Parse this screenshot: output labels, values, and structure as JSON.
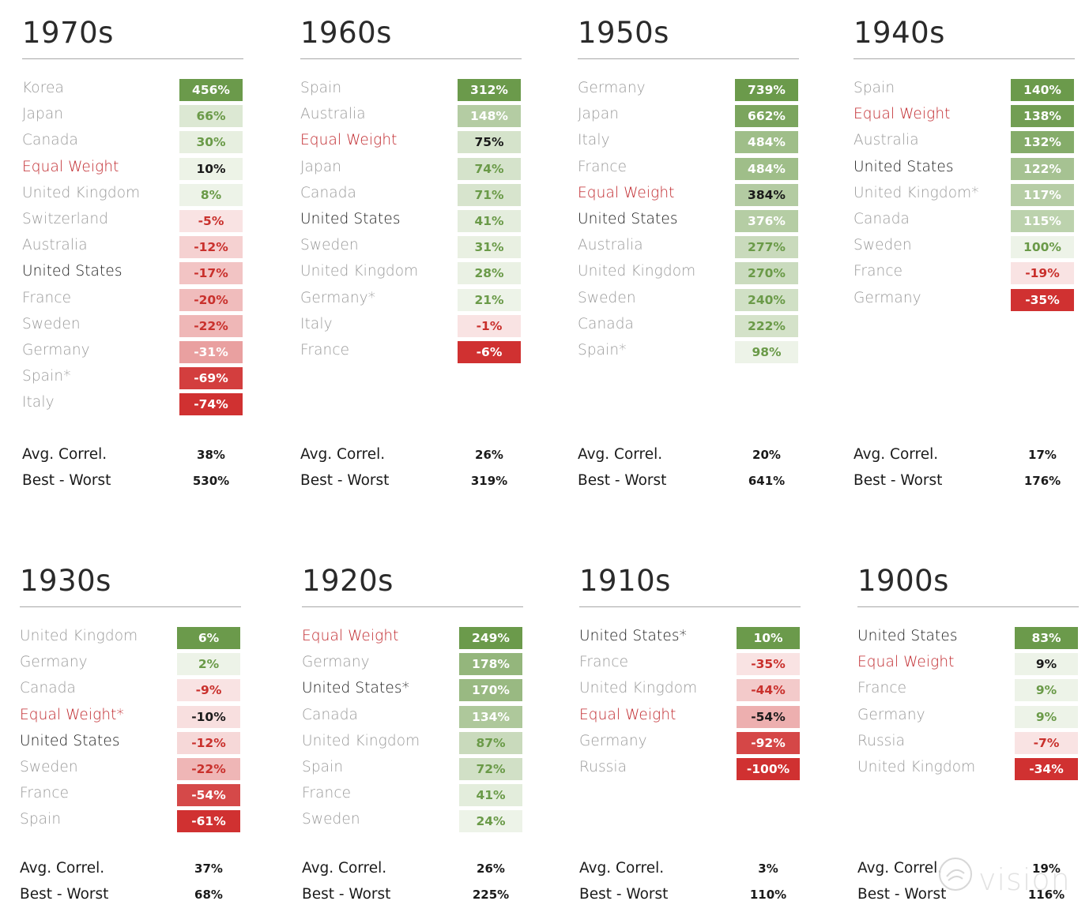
{
  "chart_data": [
    {
      "type": "table",
      "title": "1970s",
      "rows": [
        {
          "label": "Korea",
          "value": 456,
          "display": "456%",
          "label_style": "gray"
        },
        {
          "label": "Japan",
          "value": 66,
          "display": "66%",
          "label_style": "gray"
        },
        {
          "label": "Canada",
          "value": 30,
          "display": "30%",
          "label_style": "gray"
        },
        {
          "label": "Equal Weight",
          "value": 10,
          "display": "10%",
          "label_style": "red"
        },
        {
          "label": "United Kingdom",
          "value": 8,
          "display": "8%",
          "label_style": "gray"
        },
        {
          "label": "Switzerland",
          "value": -5,
          "display": "-5%",
          "label_style": "gray"
        },
        {
          "label": "Australia",
          "value": -12,
          "display": "-12%",
          "label_style": "gray"
        },
        {
          "label": "United States",
          "value": -17,
          "display": "-17%",
          "label_style": "black"
        },
        {
          "label": "France",
          "value": -20,
          "display": "-20%",
          "label_style": "gray"
        },
        {
          "label": "Sweden",
          "value": -22,
          "display": "-22%",
          "label_style": "gray"
        },
        {
          "label": "Germany",
          "value": -31,
          "display": "-31%",
          "label_style": "gray"
        },
        {
          "label": "Spain*",
          "value": -69,
          "display": "-69%",
          "label_style": "gray"
        },
        {
          "label": "Italy",
          "value": -74,
          "display": "-74%",
          "label_style": "gray"
        }
      ],
      "stats": {
        "avg_correl_label": "Avg. Correl.",
        "avg_correl": "38%",
        "best_worst_label": "Best - Worst",
        "best_worst": "530%"
      }
    },
    {
      "type": "table",
      "title": "1960s",
      "rows": [
        {
          "label": "Spain",
          "value": 312,
          "display": "312%",
          "label_style": "gray"
        },
        {
          "label": "Australia",
          "value": 148,
          "display": "148%",
          "label_style": "gray"
        },
        {
          "label": "Equal Weight",
          "value": 75,
          "display": "75%",
          "label_style": "red"
        },
        {
          "label": "Japan",
          "value": 74,
          "display": "74%",
          "label_style": "gray"
        },
        {
          "label": "Canada",
          "value": 71,
          "display": "71%",
          "label_style": "gray"
        },
        {
          "label": "United States",
          "value": 41,
          "display": "41%",
          "label_style": "black"
        },
        {
          "label": "Sweden",
          "value": 31,
          "display": "31%",
          "label_style": "gray"
        },
        {
          "label": "United Kingdom",
          "value": 28,
          "display": "28%",
          "label_style": "gray"
        },
        {
          "label": "Germany*",
          "value": 21,
          "display": "21%",
          "label_style": "gray"
        },
        {
          "label": "Italy",
          "value": -1,
          "display": "-1%",
          "label_style": "gray"
        },
        {
          "label": "France",
          "value": -6,
          "display": "-6%",
          "label_style": "gray"
        }
      ],
      "stats": {
        "avg_correl_label": "Avg. Correl.",
        "avg_correl": "26%",
        "best_worst_label": "Best - Worst",
        "best_worst": "319%"
      }
    },
    {
      "type": "table",
      "title": "1950s",
      "rows": [
        {
          "label": "Germany",
          "value": 739,
          "display": "739%",
          "label_style": "gray"
        },
        {
          "label": "Japan",
          "value": 662,
          "display": "662%",
          "label_style": "gray"
        },
        {
          "label": "Italy",
          "value": 484,
          "display": "484%",
          "label_style": "gray"
        },
        {
          "label": "France",
          "value": 484,
          "display": "484%",
          "label_style": "gray"
        },
        {
          "label": "Equal Weight",
          "value": 384,
          "display": "384%",
          "label_style": "red"
        },
        {
          "label": "United States",
          "value": 376,
          "display": "376%",
          "label_style": "black"
        },
        {
          "label": "Australia",
          "value": 277,
          "display": "277%",
          "label_style": "gray"
        },
        {
          "label": "United Kingdom",
          "value": 270,
          "display": "270%",
          "label_style": "gray"
        },
        {
          "label": "Sweden",
          "value": 240,
          "display": "240%",
          "label_style": "gray"
        },
        {
          "label": "Canada",
          "value": 222,
          "display": "222%",
          "label_style": "gray"
        },
        {
          "label": "Spain*",
          "value": 98,
          "display": "98%",
          "label_style": "gray"
        }
      ],
      "stats": {
        "avg_correl_label": "Avg. Correl.",
        "avg_correl": "20%",
        "best_worst_label": "Best - Worst",
        "best_worst": "641%"
      }
    },
    {
      "type": "table",
      "title": "1940s",
      "rows": [
        {
          "label": "Spain",
          "value": 140,
          "display": "140%",
          "label_style": "gray"
        },
        {
          "label": "Equal Weight",
          "value": 138,
          "display": "138%",
          "label_style": "red"
        },
        {
          "label": "Australia",
          "value": 132,
          "display": "132%",
          "label_style": "gray"
        },
        {
          "label": "United States",
          "value": 122,
          "display": "122%",
          "label_style": "black"
        },
        {
          "label": "United Kingdom*",
          "value": 117,
          "display": "117%",
          "label_style": "gray"
        },
        {
          "label": "Canada",
          "value": 115,
          "display": "115%",
          "label_style": "gray"
        },
        {
          "label": "Sweden",
          "value": 100,
          "display": "100%",
          "label_style": "gray"
        },
        {
          "label": "France",
          "value": -19,
          "display": "-19%",
          "label_style": "gray"
        },
        {
          "label": "Germany",
          "value": -35,
          "display": "-35%",
          "label_style": "gray"
        }
      ],
      "stats": {
        "avg_correl_label": "Avg. Correl.",
        "avg_correl": "17%",
        "best_worst_label": "Best - Worst",
        "best_worst": "176%"
      }
    },
    {
      "type": "table",
      "title": "1930s",
      "rows": [
        {
          "label": "United Kingdom",
          "value": 6,
          "display": "6%",
          "label_style": "gray"
        },
        {
          "label": "Germany",
          "value": 2,
          "display": "2%",
          "label_style": "gray"
        },
        {
          "label": "Canada",
          "value": -9,
          "display": "-9%",
          "label_style": "gray"
        },
        {
          "label": "Equal Weight*",
          "value": -10,
          "display": "-10%",
          "label_style": "red"
        },
        {
          "label": "United States",
          "value": -12,
          "display": "-12%",
          "label_style": "black"
        },
        {
          "label": "Sweden",
          "value": -22,
          "display": "-22%",
          "label_style": "gray"
        },
        {
          "label": "France",
          "value": -54,
          "display": "-54%",
          "label_style": "gray"
        },
        {
          "label": "Spain",
          "value": -61,
          "display": "-61%",
          "label_style": "gray"
        }
      ],
      "stats": {
        "avg_correl_label": "Avg. Correl.",
        "avg_correl": "37%",
        "best_worst_label": "Best - Worst",
        "best_worst": "68%"
      }
    },
    {
      "type": "table",
      "title": "1920s",
      "rows": [
        {
          "label": "Equal Weight",
          "value": 249,
          "display": "249%",
          "label_style": "red"
        },
        {
          "label": "Germany",
          "value": 178,
          "display": "178%",
          "label_style": "gray"
        },
        {
          "label": "United States*",
          "value": 170,
          "display": "170%",
          "label_style": "black"
        },
        {
          "label": "Canada",
          "value": 134,
          "display": "134%",
          "label_style": "gray"
        },
        {
          "label": "United Kingdom",
          "value": 87,
          "display": "87%",
          "label_style": "gray"
        },
        {
          "label": "Spain",
          "value": 72,
          "display": "72%",
          "label_style": "gray"
        },
        {
          "label": "France",
          "value": 41,
          "display": "41%",
          "label_style": "gray"
        },
        {
          "label": "Sweden",
          "value": 24,
          "display": "24%",
          "label_style": "gray"
        }
      ],
      "stats": {
        "avg_correl_label": "Avg. Correl.",
        "avg_correl": "26%",
        "best_worst_label": "Best - Worst",
        "best_worst": "225%"
      }
    },
    {
      "type": "table",
      "title": "1910s",
      "rows": [
        {
          "label": "United States*",
          "value": 10,
          "display": "10%",
          "label_style": "black"
        },
        {
          "label": "France",
          "value": -35,
          "display": "-35%",
          "label_style": "gray"
        },
        {
          "label": "United Kingdom",
          "value": -44,
          "display": "-44%",
          "label_style": "gray"
        },
        {
          "label": "Equal Weight",
          "value": -54,
          "display": "-54%",
          "label_style": "red"
        },
        {
          "label": "Germany",
          "value": -92,
          "display": "-92%",
          "label_style": "gray"
        },
        {
          "label": "Russia",
          "value": -100,
          "display": "-100%",
          "label_style": "gray"
        }
      ],
      "stats": {
        "avg_correl_label": "Avg. Correl.",
        "avg_correl": "3%",
        "best_worst_label": "Best - Worst",
        "best_worst": "110%"
      }
    },
    {
      "type": "table",
      "title": "1900s",
      "rows": [
        {
          "label": "United States",
          "value": 83,
          "display": "83%",
          "label_style": "black"
        },
        {
          "label": "Equal Weight",
          "value": 9,
          "display": "9%",
          "label_style": "red"
        },
        {
          "label": "France",
          "value": 9,
          "display": "9%",
          "label_style": "gray"
        },
        {
          "label": "Germany",
          "value": 9,
          "display": "9%",
          "label_style": "gray"
        },
        {
          "label": "Russia",
          "value": -7,
          "display": "-7%",
          "label_style": "gray"
        },
        {
          "label": "United Kingdom",
          "value": -34,
          "display": "-34%",
          "label_style": "gray"
        }
      ],
      "stats": {
        "avg_correl_label": "Avg. Correl.",
        "avg_correl": "19%",
        "best_worst_label": "Best - Worst",
        "best_worst": "116%"
      }
    }
  ],
  "watermark": {
    "text": "vision",
    "icon": "vision-logo-icon"
  },
  "colors": {
    "green_dark": "#6b9a4b",
    "green_light": "#f4f8f0",
    "red_dark": "#d03131",
    "red_light": "#fbecec",
    "equal_weight_label": "#c0282d"
  }
}
